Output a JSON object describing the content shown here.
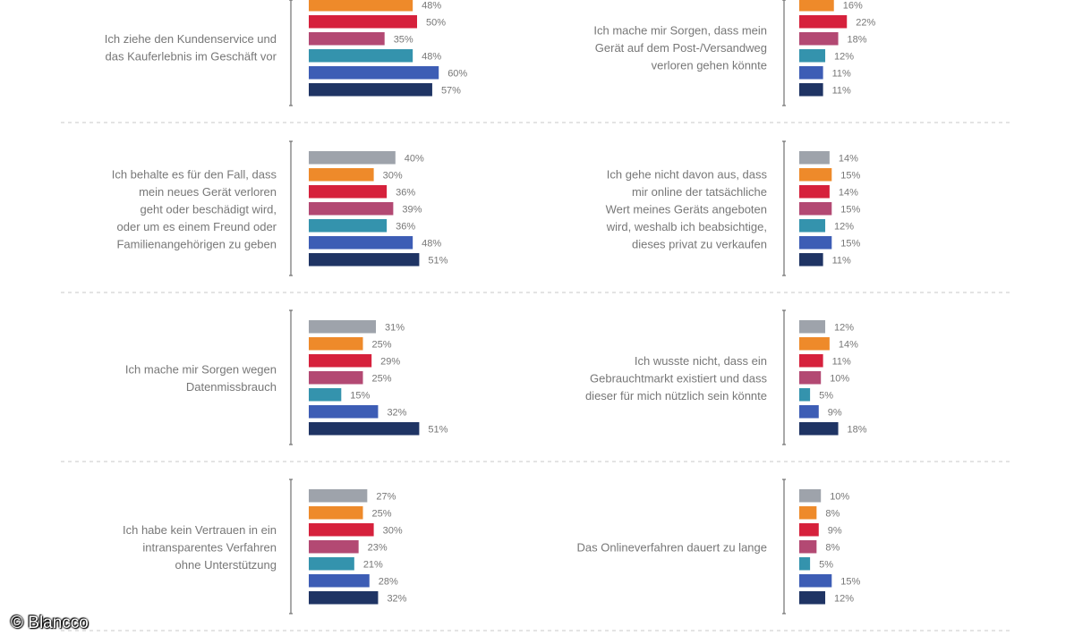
{
  "colors": [
    "#9ea3ab",
    "#ee8a2a",
    "#d6213c",
    "#b34973",
    "#3493ad",
    "#3d5db5",
    "#1f3464"
  ],
  "copyright": "© Blancco",
  "chart_data": [
    {
      "type": "bar",
      "orientation": "horizontal",
      "label_lines": [
        "Ich ziehe den Kundenservice und",
        "das Kauferlebnis im Geschäft vor"
      ],
      "values": [
        48,
        50,
        35,
        48,
        60,
        57
      ],
      "value_labels": [
        "48%",
        "50%",
        "35%",
        "48%",
        "60%",
        "57%"
      ]
    },
    {
      "type": "bar",
      "orientation": "horizontal",
      "label_lines": [
        "Ich mache mir Sorgen, dass mein",
        "Gerät auf dem Post-/Versandweg",
        "verloren gehen könnte"
      ],
      "values": [
        16,
        22,
        18,
        12,
        11,
        11
      ],
      "value_labels": [
        "16%",
        "22%",
        "18%",
        "12%",
        "11%",
        "11%"
      ]
    },
    {
      "type": "bar",
      "orientation": "horizontal",
      "label_lines": [
        "Ich behalte es für den Fall, dass",
        "mein neues Gerät verloren",
        "geht oder beschädigt wird,",
        "oder um es einem Freund oder",
        "Familienangehörigen zu geben"
      ],
      "values": [
        40,
        30,
        36,
        39,
        36,
        48,
        51
      ],
      "value_labels": [
        "40%",
        "30%",
        "36%",
        "39%",
        "36%",
        "48%",
        "51%"
      ]
    },
    {
      "type": "bar",
      "orientation": "horizontal",
      "label_lines": [
        "Ich gehe nicht davon aus, dass",
        "mir online der tatsächliche",
        "Wert meines Geräts angeboten",
        "wird, weshalb ich beabsichtige,",
        "dieses privat zu verkaufen"
      ],
      "values": [
        14,
        15,
        14,
        15,
        12,
        15,
        11
      ],
      "value_labels": [
        "14%",
        "15%",
        "14%",
        "15%",
        "12%",
        "15%",
        "11%"
      ]
    },
    {
      "type": "bar",
      "orientation": "horizontal",
      "label_lines": [
        "Ich mache mir Sorgen wegen",
        "Datenmissbrauch"
      ],
      "values": [
        31,
        25,
        29,
        25,
        15,
        32,
        51
      ],
      "value_labels": [
        "31%",
        "25%",
        "29%",
        "25%",
        "15%",
        "32%",
        "51%"
      ]
    },
    {
      "type": "bar",
      "orientation": "horizontal",
      "label_lines": [
        "Ich wusste nicht, dass ein",
        "Gebrauchtmarkt existiert und dass",
        "dieser für mich nützlich sein könnte"
      ],
      "values": [
        12,
        14,
        11,
        10,
        5,
        9,
        18
      ],
      "value_labels": [
        "12%",
        "14%",
        "11%",
        "10%",
        "5%",
        "9%",
        "18%"
      ]
    },
    {
      "type": "bar",
      "orientation": "horizontal",
      "label_lines": [
        "Ich habe kein Vertrauen in ein",
        "intransparentes Verfahren",
        "ohne Unterstützung"
      ],
      "values": [
        27,
        25,
        30,
        23,
        21,
        28,
        32
      ],
      "value_labels": [
        "27%",
        "25%",
        "30%",
        "23%",
        "21%",
        "28%",
        "32%"
      ]
    },
    {
      "type": "bar",
      "orientation": "horizontal",
      "label_lines": [
        "Das Onlineverfahren dauert zu lange"
      ],
      "values": [
        10,
        8,
        9,
        8,
        5,
        15,
        12
      ],
      "value_labels": [
        "10%",
        "8%",
        "9%",
        "8%",
        "5%",
        "15%",
        "12%"
      ]
    }
  ]
}
